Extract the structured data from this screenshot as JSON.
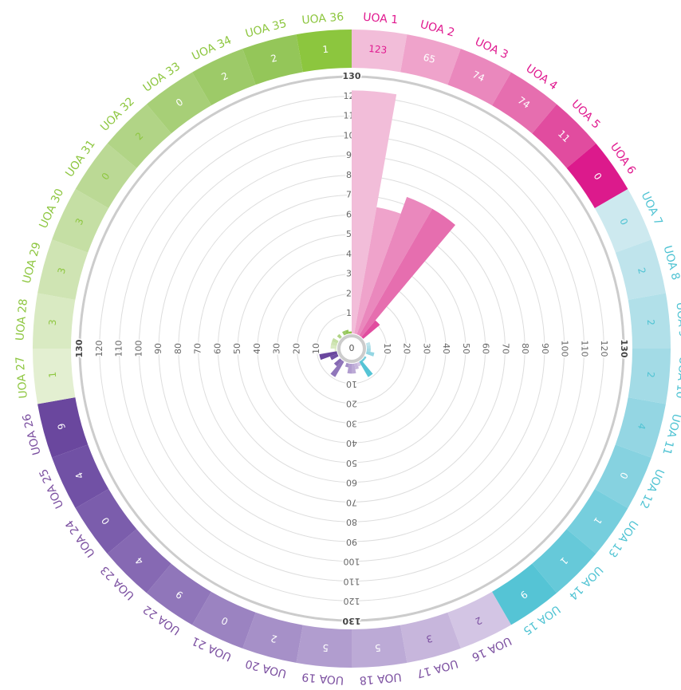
{
  "chart_data": {
    "type": "radial-bar",
    "categories": [
      "UOA 1",
      "UOA 2",
      "UOA 3",
      "UOA 4",
      "UOA 5",
      "UOA 6",
      "UOA 7",
      "UOA 8",
      "UOA 9",
      "UOA 10",
      "UOA 11",
      "UOA 12",
      "UOA 13",
      "UOA 14",
      "UOA 15",
      "UOA 16",
      "UOA 17",
      "UOA 18",
      "UOA 19",
      "UOA 20",
      "UOA 21",
      "UOA 22",
      "UOA 23",
      "UOA 24",
      "UOA 25",
      "UOA 26",
      "UOA 27",
      "UOA 28",
      "UOA 29",
      "UOA 30",
      "UOA 31",
      "UOA 32",
      "UOA 33",
      "UOA 34",
      "UOA 35",
      "UOA 36"
    ],
    "values": [
      123,
      65,
      74,
      74,
      11,
      0,
      0,
      2,
      2,
      2,
      4,
      0,
      1,
      1,
      9,
      2,
      3,
      5,
      5,
      2,
      0,
      9,
      4,
      0,
      4,
      9,
      1,
      3,
      3,
      3,
      0,
      2,
      0,
      2,
      2,
      1
    ],
    "colors": [
      "#f2bdd9",
      "#efa3cb",
      "#ea88bd",
      "#e66eaf",
      "#e14c9f",
      "#dc1a8c",
      "#cde9ef",
      "#bfe4ec",
      "#b1e0e9",
      "#a3dbe6",
      "#94d6e3",
      "#86d2e0",
      "#76cedd",
      "#66c9d9",
      "#55c4d5",
      "#d3c5e4",
      "#c7b6dc",
      "#bcaad6",
      "#b19dcf",
      "#a690c8",
      "#9b83c1",
      "#9076ba",
      "#8669b3",
      "#7b5dac",
      "#7151a5",
      "#6a479e",
      "#e3efd1",
      "#d9eac2",
      "#cfe4b3",
      "#c5dfa4",
      "#bbd995",
      "#b1d486",
      "#a7cf77",
      "#9dca68",
      "#94c659",
      "#8cc63e"
    ],
    "label_colors": [
      "#e0198f",
      "#e0198f",
      "#e0198f",
      "#e0198f",
      "#e0198f",
      "#e0198f",
      "#4fc3d3",
      "#4fc3d3",
      "#4fc3d3",
      "#4fc3d3",
      "#4fc3d3",
      "#4fc3d3",
      "#4fc3d3",
      "#4fc3d3",
      "#4fc3d3",
      "#7b4fa0",
      "#7b4fa0",
      "#7b4fa0",
      "#7b4fa0",
      "#7b4fa0",
      "#7b4fa0",
      "#7b4fa0",
      "#7b4fa0",
      "#7b4fa0",
      "#7b4fa0",
      "#7b4fa0",
      "#8dc63f",
      "#8dc63f",
      "#8dc63f",
      "#8dc63f",
      "#8dc63f",
      "#8dc63f",
      "#8dc63f",
      "#8dc63f",
      "#8dc63f",
      "#8dc63f"
    ],
    "rlim": [
      0,
      130
    ],
    "rticks": [
      0,
      10,
      20,
      30,
      40,
      50,
      60,
      70,
      80,
      90,
      100,
      110,
      120,
      130
    ],
    "grid": true
  }
}
